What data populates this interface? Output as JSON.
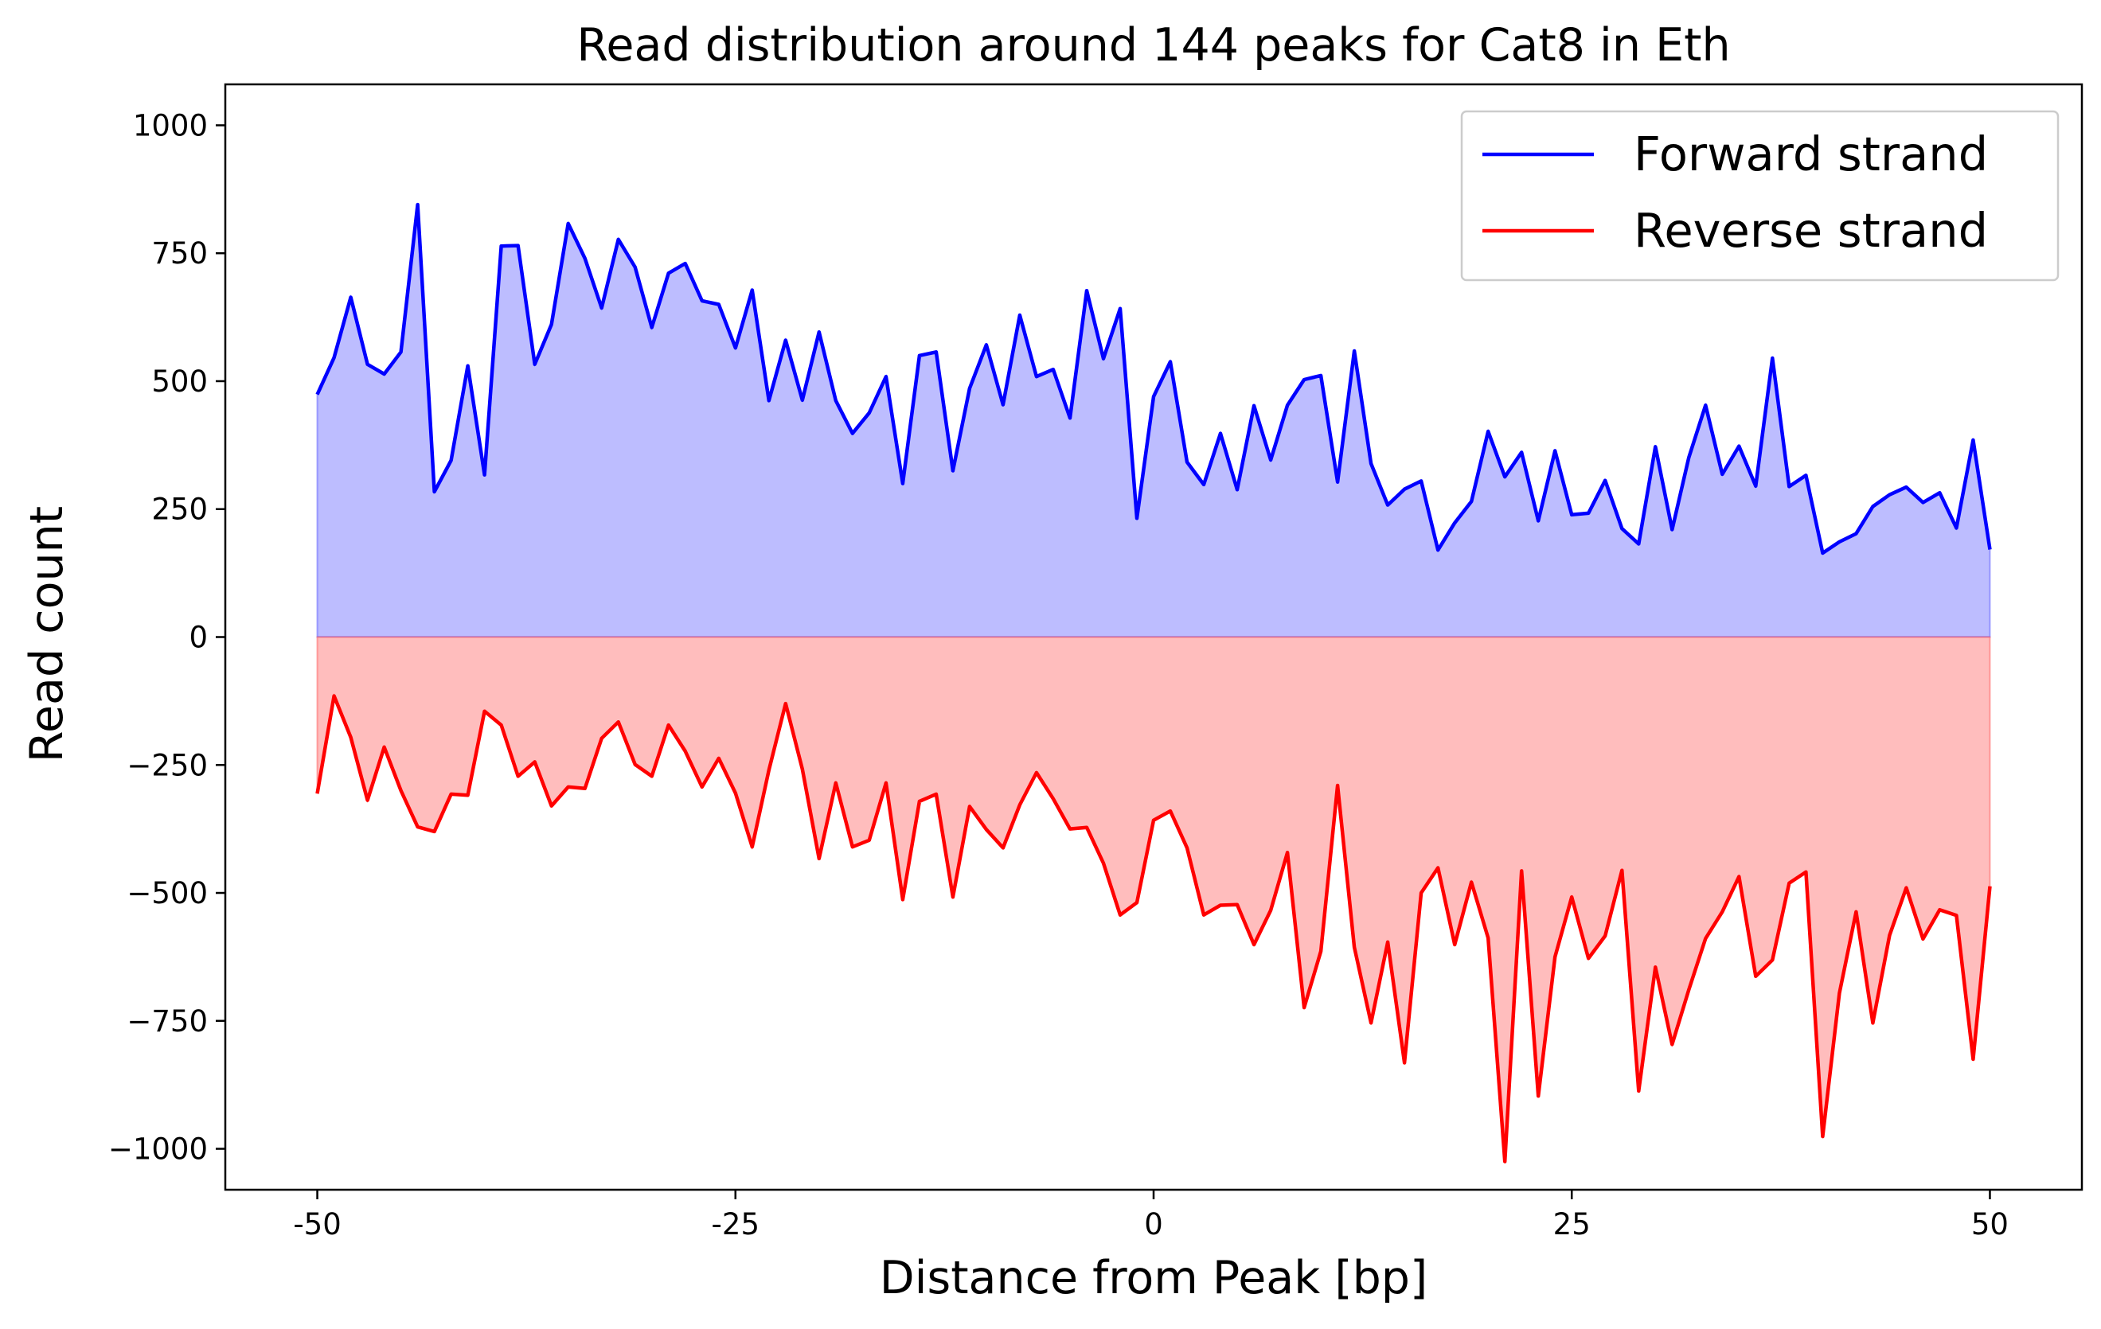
{
  "chart_data": {
    "type": "area",
    "title": "Read distribution around 144 peaks for Cat8 in Eth",
    "xlabel": "Distance from Peak [bp]",
    "ylabel": "Read count",
    "xlim": [
      -55.5,
      55.5
    ],
    "ylim": [
      -1080,
      1080
    ],
    "grid": false,
    "legend_position": "top-right",
    "xticks": [
      -50,
      -25,
      0,
      25,
      50
    ],
    "xtick_labels": [
      "-50",
      "-25",
      "0",
      "25",
      "50"
    ],
    "yticks": [
      1000,
      750,
      500,
      250,
      0,
      -250,
      -500,
      -750,
      -1000
    ],
    "ytick_labels": [
      "1000",
      "750",
      "500",
      "250",
      "0",
      "−250",
      "−500",
      "−750",
      "−1000"
    ],
    "x_start": -50,
    "x_step": 1,
    "series": [
      {
        "name": "Forward strand",
        "color": "#0000ff",
        "fill": "#bdbdff",
        "values": [
          474,
          546,
          664,
          533,
          514,
          557,
          845,
          284,
          345,
          530,
          317,
          764,
          765,
          533,
          611,
          808,
          740,
          643,
          777,
          723,
          605,
          711,
          730,
          657,
          650,
          565,
          678,
          462,
          580,
          463,
          596,
          462,
          398,
          438,
          509,
          300,
          550,
          557,
          325,
          486,
          571,
          454,
          629,
          509,
          523,
          428,
          677,
          544,
          642,
          232,
          470,
          538,
          342,
          298,
          398,
          288,
          452,
          346,
          453,
          503,
          511,
          303,
          559,
          339,
          258,
          289,
          305,
          170,
          223,
          265,
          402,
          313,
          361,
          227,
          364,
          239,
          242,
          306,
          212,
          182,
          372,
          210,
          351,
          453,
          318,
          373,
          295,
          545,
          294,
          316,
          164,
          186,
          202,
          255,
          278,
          293,
          263,
          282,
          213,
          385,
          171
        ]
      },
      {
        "name": "Reverse strand",
        "color": "#ff0000",
        "fill": "#ffbdbd",
        "values": [
          -306,
          -115,
          -196,
          -319,
          -215,
          -300,
          -371,
          -380,
          -307,
          -309,
          -145,
          -172,
          -272,
          -244,
          -330,
          -293,
          -296,
          -198,
          -166,
          -249,
          -272,
          -172,
          -223,
          -293,
          -237,
          -305,
          -410,
          -260,
          -130,
          -258,
          -433,
          -285,
          -410,
          -397,
          -285,
          -513,
          -321,
          -307,
          -508,
          -331,
          -376,
          -412,
          -328,
          -265,
          -316,
          -375,
          -372,
          -442,
          -543,
          -519,
          -358,
          -340,
          -412,
          -543,
          -524,
          -523,
          -601,
          -534,
          -421,
          -724,
          -614,
          -290,
          -606,
          -754,
          -596,
          -832,
          -500,
          -451,
          -601,
          -479,
          -588,
          -1025,
          -457,
          -897,
          -625,
          -508,
          -628,
          -584,
          -456,
          -887,
          -645,
          -796,
          -689,
          -589,
          -537,
          -468,
          -663,
          -631,
          -481,
          -459,
          -976,
          -696,
          -537,
          -754,
          -583,
          -490,
          -590,
          -533,
          -544,
          -825,
          -487
        ]
      }
    ]
  }
}
